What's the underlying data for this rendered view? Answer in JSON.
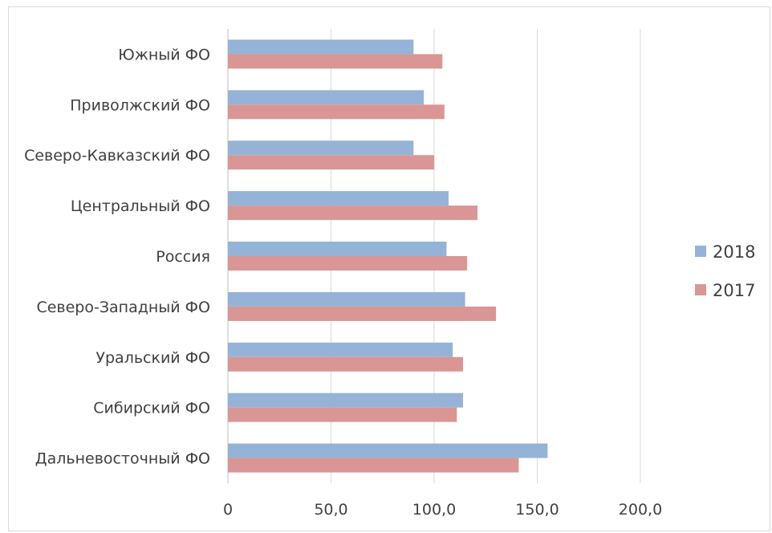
{
  "chart_data": {
    "type": "bar",
    "orientation": "horizontal",
    "categories": [
      "Южный ФО",
      "Приволжский ФО",
      "Северо-Кавказский ФО",
      "Центральный ФО",
      "Россия",
      "Северо-Западный ФО",
      "Уральский ФО",
      "Сибирский ФО",
      "Дальневосточный ФО"
    ],
    "series": [
      {
        "name": "2018",
        "color": "#95b3d7",
        "values": [
          90.0,
          95.0,
          90.0,
          107.0,
          106.0,
          115.0,
          109.0,
          114.0,
          155.0
        ]
      },
      {
        "name": "2017",
        "color": "#d99694",
        "values": [
          104.0,
          105.0,
          100.0,
          121.0,
          116.0,
          130.0,
          114.0,
          111.0,
          141.0
        ]
      }
    ],
    "x_ticks": [
      "0",
      "50,0",
      "100,0",
      "150,0",
      "200,0"
    ],
    "xlim": [
      0,
      200
    ],
    "title": "",
    "xlabel": "",
    "ylabel": "",
    "grid": "vertical",
    "legend_position": "right"
  }
}
